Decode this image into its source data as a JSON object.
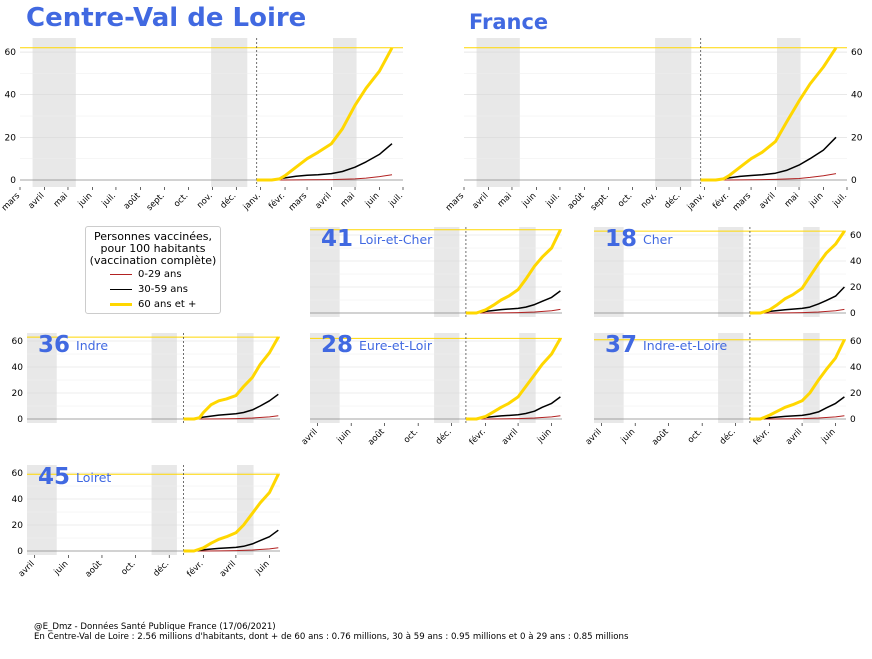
{
  "titles": {
    "region": "Centre-Val de Loire",
    "france": "France"
  },
  "legend": {
    "title_lines": [
      "Personnes vaccinées,",
      "pour 100 habitants",
      "(vaccination complète)"
    ],
    "items": [
      {
        "label": "0-29 ans",
        "color": "#b22222"
      },
      {
        "label": "30-59 ans",
        "color": "#000000"
      },
      {
        "label": "60 ans et +",
        "color": "#FFD700"
      }
    ]
  },
  "footer": {
    "line1": "@E_Dmz - Données Santé Publique France (17/06/2021)",
    "line2": "En Centre-Val de Loire : 2.56 millions d'habitants, dont + de 60 ans : 0.76 millions, 30 à 59 ans : 0.95 millions et 0 à 29 ans : 0.85 millions"
  },
  "colors": {
    "title": "#4169E1",
    "line_60plus": "#FFD700",
    "line_30_59": "#000000",
    "line_0_29": "#b22222",
    "shade": "#e8e8e8",
    "grid": "#d9d9d9"
  },
  "chart_data": [
    {
      "id": "centre-val-de-loire",
      "type": "line",
      "title": "Centre-Val de Loire",
      "xlabel": "",
      "ylabel": "",
      "x_ticks": [
        "mars",
        "avril",
        "mai",
        "juin",
        "juil.",
        "août",
        "sept.",
        "oct.",
        "nov.",
        "déc.",
        "janv.",
        "févr.",
        "mars",
        "avril",
        "mai",
        "juin",
        "juil."
      ],
      "y_ticks": [
        0,
        20,
        40,
        60
      ],
      "ylim": [
        0,
        65
      ],
      "grid": true,
      "series": [
        {
          "name": "0-29 ans",
          "x": [
            "2020-12-27",
            "2021-02-01",
            "2021-03-01",
            "2021-04-01",
            "2021-05-01",
            "2021-05-15",
            "2021-06-01",
            "2021-06-17"
          ],
          "values": [
            0,
            0,
            0.1,
            0.2,
            0.5,
            0.9,
            1.6,
            2.5
          ]
        },
        {
          "name": "30-59 ans",
          "x": [
            "2020-12-27",
            "2021-01-15",
            "2021-02-01",
            "2021-02-15",
            "2021-03-01",
            "2021-03-15",
            "2021-04-01",
            "2021-04-15",
            "2021-05-01",
            "2021-05-15",
            "2021-06-01",
            "2021-06-17"
          ],
          "values": [
            0,
            0,
            1.0,
            1.8,
            2.2,
            2.5,
            3.0,
            4.0,
            6.0,
            8.5,
            12.0,
            17.0
          ]
        },
        {
          "name": "60 ans et +",
          "x": [
            "2020-12-27",
            "2021-01-15",
            "2021-01-25",
            "2021-02-01",
            "2021-02-15",
            "2021-03-01",
            "2021-03-15",
            "2021-04-01",
            "2021-04-15",
            "2021-05-01",
            "2021-05-15",
            "2021-06-01",
            "2021-06-17"
          ],
          "values": [
            0,
            0,
            0.5,
            2.0,
            6.0,
            10.0,
            13.0,
            17.0,
            24.0,
            35.0,
            43.0,
            51.0,
            62.0
          ]
        }
      ]
    },
    {
      "id": "france",
      "type": "line",
      "title": "France",
      "xlabel": "",
      "ylabel": "",
      "x_ticks": [
        "mars",
        "avril",
        "mai",
        "juin",
        "juil.",
        "août",
        "sept.",
        "oct.",
        "nov.",
        "déc.",
        "janv.",
        "févr.",
        "mars",
        "avril",
        "mai",
        "juin",
        "juil."
      ],
      "y_ticks": [
        0,
        20,
        40,
        60
      ],
      "ylim": [
        0,
        65
      ],
      "grid": true,
      "series": [
        {
          "name": "0-29 ans",
          "x": [
            "2020-12-27",
            "2021-02-01",
            "2021-03-01",
            "2021-04-01",
            "2021-05-01",
            "2021-05-15",
            "2021-06-01",
            "2021-06-17"
          ],
          "values": [
            0,
            0,
            0.1,
            0.3,
            0.7,
            1.2,
            2.0,
            3.0
          ]
        },
        {
          "name": "30-59 ans",
          "x": [
            "2020-12-27",
            "2021-01-15",
            "2021-02-01",
            "2021-02-15",
            "2021-03-01",
            "2021-03-15",
            "2021-04-01",
            "2021-04-15",
            "2021-05-01",
            "2021-05-15",
            "2021-06-01",
            "2021-06-17"
          ],
          "values": [
            0,
            0,
            1.0,
            1.7,
            2.1,
            2.5,
            3.2,
            4.5,
            7.0,
            10.0,
            14.0,
            20.0
          ]
        },
        {
          "name": "60 ans et +",
          "x": [
            "2020-12-27",
            "2021-01-15",
            "2021-01-25",
            "2021-02-01",
            "2021-02-15",
            "2021-03-01",
            "2021-03-15",
            "2021-04-01",
            "2021-04-15",
            "2021-05-01",
            "2021-05-15",
            "2021-06-01",
            "2021-06-17"
          ],
          "values": [
            0,
            0,
            0.5,
            2.0,
            6.0,
            10.0,
            13.0,
            18.0,
            27.0,
            37.0,
            45.0,
            53.0,
            62.0
          ]
        }
      ]
    },
    {
      "id": "dept-41",
      "type": "line",
      "dept_number": "41",
      "dept_name": "Loir-et-Cher",
      "x_ticks": [],
      "y_ticks": [
        0,
        20,
        40,
        60
      ],
      "ylim": [
        0,
        65
      ],
      "grid": true,
      "series": [
        {
          "name": "0-29 ans",
          "x": [
            "2020-12-27",
            "2021-02-01",
            "2021-03-01",
            "2021-04-01",
            "2021-05-01",
            "2021-06-01",
            "2021-06-17"
          ],
          "values": [
            0,
            0,
            0.1,
            0.3,
            0.8,
            1.8,
            2.8
          ]
        },
        {
          "name": "30-59 ans",
          "x": [
            "2020-12-27",
            "2021-01-15",
            "2021-02-01",
            "2021-03-01",
            "2021-04-01",
            "2021-04-15",
            "2021-05-01",
            "2021-05-15",
            "2021-06-01",
            "2021-06-17"
          ],
          "values": [
            0,
            0,
            1.2,
            2.6,
            3.5,
            4.5,
            6.5,
            9.0,
            12.0,
            17.0
          ]
        },
        {
          "name": "60 ans et +",
          "x": [
            "2020-12-27",
            "2021-01-15",
            "2021-02-01",
            "2021-02-15",
            "2021-03-01",
            "2021-03-15",
            "2021-04-01",
            "2021-04-15",
            "2021-05-01",
            "2021-05-15",
            "2021-06-01",
            "2021-06-17"
          ],
          "values": [
            0,
            0,
            2.5,
            6.0,
            10.0,
            13.0,
            18.0,
            26.0,
            36.0,
            43.0,
            50.0,
            64.0
          ]
        }
      ]
    },
    {
      "id": "dept-18",
      "type": "line",
      "dept_number": "18",
      "dept_name": "Cher",
      "x_ticks": [],
      "y_ticks": [
        0,
        20,
        40,
        60
      ],
      "ylim": [
        0,
        65
      ],
      "grid": true,
      "series": [
        {
          "name": "0-29 ans",
          "x": [
            "2020-12-27",
            "2021-02-01",
            "2021-03-01",
            "2021-04-01",
            "2021-05-01",
            "2021-06-01",
            "2021-06-17"
          ],
          "values": [
            0,
            0,
            0.1,
            0.3,
            0.8,
            1.8,
            2.8
          ]
        },
        {
          "name": "30-59 ans",
          "x": [
            "2020-12-27",
            "2021-01-15",
            "2021-02-01",
            "2021-03-01",
            "2021-04-01",
            "2021-04-15",
            "2021-05-01",
            "2021-05-15",
            "2021-06-01",
            "2021-06-17"
          ],
          "values": [
            0,
            0,
            1.2,
            2.5,
            3.5,
            4.5,
            7.0,
            9.5,
            13.0,
            20.0
          ]
        },
        {
          "name": "60 ans et +",
          "x": [
            "2020-12-27",
            "2021-01-15",
            "2021-02-01",
            "2021-02-15",
            "2021-03-01",
            "2021-03-15",
            "2021-04-01",
            "2021-04-15",
            "2021-05-01",
            "2021-05-15",
            "2021-06-01",
            "2021-06-17"
          ],
          "values": [
            0,
            0,
            2.5,
            6.5,
            11.0,
            14.0,
            19.0,
            28.0,
            38.0,
            46.0,
            53.0,
            63.0
          ]
        }
      ]
    },
    {
      "id": "dept-36",
      "type": "line",
      "dept_number": "36",
      "dept_name": "Indre",
      "x_ticks": [],
      "y_ticks": [
        0,
        20,
        40,
        60
      ],
      "ylim": [
        0,
        65
      ],
      "grid": true,
      "series": [
        {
          "name": "0-29 ans",
          "x": [
            "2020-12-27",
            "2021-02-01",
            "2021-03-01",
            "2021-04-01",
            "2021-05-01",
            "2021-06-01",
            "2021-06-17"
          ],
          "values": [
            0,
            0,
            0.1,
            0.3,
            0.8,
            1.6,
            2.5
          ]
        },
        {
          "name": "30-59 ans",
          "x": [
            "2020-12-27",
            "2021-01-15",
            "2021-02-01",
            "2021-03-01",
            "2021-04-01",
            "2021-04-15",
            "2021-05-01",
            "2021-05-15",
            "2021-06-01",
            "2021-06-17"
          ],
          "values": [
            0,
            0,
            1.5,
            3.0,
            4.0,
            5.0,
            7.0,
            10.0,
            14.0,
            19.0
          ]
        },
        {
          "name": "60 ans et +",
          "x": [
            "2020-12-27",
            "2021-01-15",
            "2021-01-25",
            "2021-02-01",
            "2021-02-15",
            "2021-03-01",
            "2021-03-15",
            "2021-04-01",
            "2021-04-15",
            "2021-05-01",
            "2021-05-15",
            "2021-06-01",
            "2021-06-17"
          ],
          "values": [
            0,
            0,
            1.0,
            5.0,
            11.0,
            14.0,
            15.5,
            18.0,
            25.0,
            32.0,
            42.0,
            51.0,
            63.0
          ]
        }
      ]
    },
    {
      "id": "dept-28",
      "type": "line",
      "dept_number": "28",
      "dept_name": "Eure-et-Loir",
      "x_ticks": [
        "avril",
        "juin",
        "août",
        "oct.",
        "déc.",
        "févr.",
        "avril",
        "juin"
      ],
      "y_ticks": [
        0,
        20,
        40,
        60
      ],
      "ylim": [
        0,
        65
      ],
      "grid": true,
      "series": [
        {
          "name": "0-29 ans",
          "x": [
            "2020-12-27",
            "2021-02-01",
            "2021-03-01",
            "2021-04-01",
            "2021-05-01",
            "2021-06-01",
            "2021-06-17"
          ],
          "values": [
            0,
            0,
            0.1,
            0.3,
            0.8,
            1.6,
            2.5
          ]
        },
        {
          "name": "30-59 ans",
          "x": [
            "2020-12-27",
            "2021-01-15",
            "2021-02-01",
            "2021-03-01",
            "2021-04-01",
            "2021-04-15",
            "2021-05-01",
            "2021-05-15",
            "2021-06-01",
            "2021-06-17"
          ],
          "values": [
            0,
            0,
            1.2,
            2.4,
            3.2,
            4.2,
            6.0,
            9.0,
            12.0,
            17.0
          ]
        },
        {
          "name": "60 ans et +",
          "x": [
            "2020-12-27",
            "2021-01-15",
            "2021-02-01",
            "2021-02-15",
            "2021-03-01",
            "2021-03-15",
            "2021-04-01",
            "2021-04-15",
            "2021-05-01",
            "2021-05-15",
            "2021-06-01",
            "2021-06-17"
          ],
          "values": [
            0,
            0,
            2.0,
            5.5,
            9.0,
            12.0,
            17.0,
            25.0,
            34.0,
            42.0,
            50.0,
            62.0
          ]
        }
      ]
    },
    {
      "id": "dept-37",
      "type": "line",
      "dept_number": "37",
      "dept_name": "Indre-et-Loire",
      "x_ticks": [
        "avril",
        "juin",
        "août",
        "oct.",
        "déc.",
        "févr.",
        "avril",
        "juin"
      ],
      "y_ticks": [
        0,
        20,
        40,
        60
      ],
      "ylim": [
        0,
        65
      ],
      "grid": true,
      "series": [
        {
          "name": "0-29 ans",
          "x": [
            "2020-12-27",
            "2021-02-01",
            "2021-03-01",
            "2021-04-01",
            "2021-05-01",
            "2021-06-01",
            "2021-06-17"
          ],
          "values": [
            0,
            0,
            0.1,
            0.3,
            0.8,
            1.6,
            2.5
          ]
        },
        {
          "name": "30-59 ans",
          "x": [
            "2020-12-27",
            "2021-01-15",
            "2021-02-01",
            "2021-03-01",
            "2021-04-01",
            "2021-04-15",
            "2021-05-01",
            "2021-05-15",
            "2021-06-01",
            "2021-06-17"
          ],
          "values": [
            0,
            0,
            1.0,
            2.0,
            2.8,
            3.8,
            5.5,
            8.5,
            12.0,
            17.0
          ]
        },
        {
          "name": "60 ans et +",
          "x": [
            "2020-12-27",
            "2021-01-15",
            "2021-02-01",
            "2021-02-15",
            "2021-03-01",
            "2021-03-15",
            "2021-04-01",
            "2021-04-15",
            "2021-05-01",
            "2021-05-15",
            "2021-06-01",
            "2021-06-17"
          ],
          "values": [
            0,
            0,
            3.0,
            6.0,
            9.0,
            11.0,
            14.0,
            20.0,
            30.0,
            38.0,
            47.0,
            61.0
          ]
        }
      ]
    },
    {
      "id": "dept-45",
      "type": "line",
      "dept_number": "45",
      "dept_name": "Loiret",
      "x_ticks": [
        "avril",
        "juin",
        "août",
        "oct.",
        "déc.",
        "févr.",
        "avril",
        "juin"
      ],
      "y_ticks": [
        0,
        20,
        40,
        60
      ],
      "ylim": [
        0,
        65
      ],
      "grid": true,
      "series": [
        {
          "name": "0-29 ans",
          "x": [
            "2020-12-27",
            "2021-02-01",
            "2021-03-01",
            "2021-04-01",
            "2021-05-01",
            "2021-06-01",
            "2021-06-17"
          ],
          "values": [
            0,
            0,
            0.1,
            0.3,
            0.8,
            1.6,
            2.5
          ]
        },
        {
          "name": "30-59 ans",
          "x": [
            "2020-12-27",
            "2021-01-15",
            "2021-02-01",
            "2021-03-01",
            "2021-04-01",
            "2021-04-15",
            "2021-05-01",
            "2021-05-15",
            "2021-06-01",
            "2021-06-17"
          ],
          "values": [
            0,
            0,
            1.0,
            2.0,
            2.8,
            3.6,
            5.5,
            8.0,
            11.0,
            16.0
          ]
        },
        {
          "name": "60 ans et +",
          "x": [
            "2020-12-27",
            "2021-01-15",
            "2021-02-01",
            "2021-02-15",
            "2021-03-01",
            "2021-03-15",
            "2021-04-01",
            "2021-04-15",
            "2021-05-01",
            "2021-05-15",
            "2021-06-01",
            "2021-06-17"
          ],
          "values": [
            0,
            0,
            2.5,
            6.0,
            9.0,
            11.0,
            14.0,
            20.0,
            29.0,
            37.0,
            45.0,
            59.0
          ]
        }
      ]
    }
  ]
}
